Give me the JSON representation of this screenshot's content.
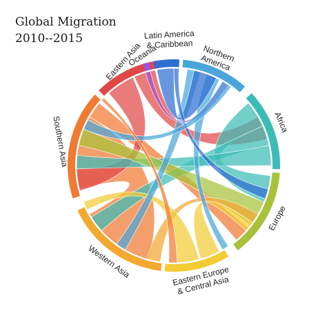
{
  "title": {
    "line1": "Global Migration",
    "line2": "2010--2015"
  },
  "regions": [
    {
      "id": "northern-america",
      "lines": [
        "Northern",
        "America"
      ],
      "color": "#4aa6d9"
    },
    {
      "id": "africa",
      "lines": [
        "Africa"
      ],
      "color": "#3cbcb6"
    },
    {
      "id": "europe",
      "lines": [
        "Europe"
      ],
      "color": "#a7c23a"
    },
    {
      "id": "eastern-europe-central-asia",
      "lines": [
        "Eastern Europe",
        "& Central Asia"
      ],
      "color": "#f2cc35"
    },
    {
      "id": "western-asia",
      "lines": [
        "Western Asia"
      ],
      "color": "#f3a830"
    },
    {
      "id": "southern-asia",
      "lines": [
        "Southern Asia"
      ],
      "color": "#f07a32"
    },
    {
      "id": "eastern-asia",
      "lines": [
        "Eastern Asia"
      ],
      "color": "#e04848"
    },
    {
      "id": "oceania",
      "lines": [
        "Oceania"
      ],
      "color": "#a452d6"
    },
    {
      "id": "latin-america-caribbean",
      "lines": [
        "Latin America",
        "& Caribbean"
      ],
      "color": "#2f6fd3"
    }
  ]
}
